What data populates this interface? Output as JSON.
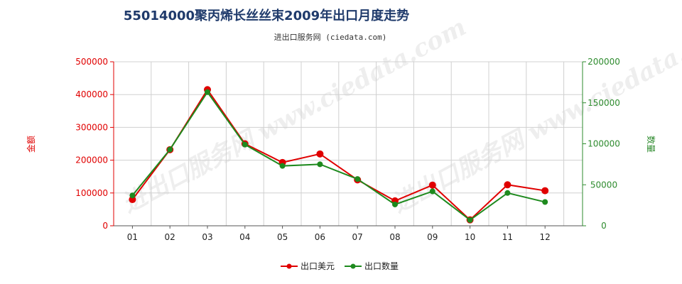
{
  "chart_data": {
    "type": "line",
    "title": "55014000聚丙烯长丝丝束2009年出口月度走势",
    "subtitle": "进出口服务网 (ciedata.com)",
    "categories": [
      "01",
      "02",
      "03",
      "04",
      "05",
      "06",
      "07",
      "08",
      "09",
      "10",
      "11",
      "12"
    ],
    "ylabel_left": "金额",
    "ylabel_right": "数量",
    "ylim_left": [
      0,
      500000
    ],
    "ylim_right": [
      0,
      200000
    ],
    "yticks_left": [
      "0",
      "100000",
      "200000",
      "300000",
      "400000",
      "500000"
    ],
    "yticks_right": [
      "0",
      "50000",
      "100000",
      "150000",
      "200000"
    ],
    "grid": true,
    "legend_position": "bottom",
    "series": [
      {
        "name": "出口美元",
        "axis": "left",
        "color": "#e00000",
        "values": [
          80000,
          232000,
          415000,
          250000,
          193000,
          219000,
          140000,
          76000,
          124000,
          18000,
          125000,
          107000
        ]
      },
      {
        "name": "出口数量",
        "axis": "right",
        "color": "#1e8a1e",
        "values": [
          37000,
          93000,
          163000,
          99000,
          73000,
          75000,
          57000,
          26000,
          42000,
          7000,
          40000,
          29000
        ]
      }
    ],
    "watermark": "进出口服务网 www.ciedata.com"
  }
}
